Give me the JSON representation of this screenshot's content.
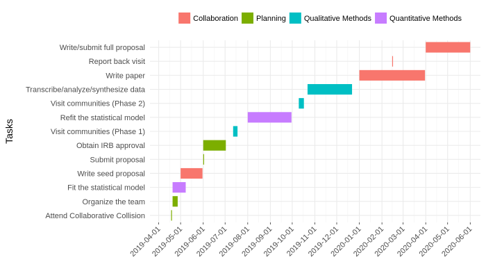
{
  "chart_data": {
    "type": "gantt",
    "ylabel": "Tasks",
    "xlabel": "",
    "xlim": [
      "2019-03-20",
      "2020-06-15"
    ],
    "x_ticks": [
      "2019-04-01",
      "2019-05-01",
      "2019-06-01",
      "2019-07-01",
      "2019-08-01",
      "2019-09-01",
      "2019-10-01",
      "2019-11-01",
      "2019-12-01",
      "2020-01-01",
      "2020-02-01",
      "2020-03-01",
      "2020-04-01",
      "2020-05-01",
      "2020-06-01"
    ],
    "legend_position": "top",
    "grid": true,
    "series": [
      {
        "name": "Collaboration",
        "color": "#F8766D"
      },
      {
        "name": "Planning",
        "color": "#7CAE00"
      },
      {
        "name": "Qualitative Methods",
        "color": "#00BFC4"
      },
      {
        "name": "Quantitative Methods",
        "color": "#C77CFF"
      }
    ],
    "tasks": [
      {
        "name": "Write/submit full proposal",
        "series": "Collaboration",
        "start": "2020-04-01",
        "end": "2020-06-01"
      },
      {
        "name": "Report back visit",
        "series": "Collaboration",
        "start": "2020-02-15",
        "end": "2020-02-16"
      },
      {
        "name": "Write paper",
        "series": "Collaboration",
        "start": "2020-01-01",
        "end": "2020-03-31"
      },
      {
        "name": "Transcribe/analyze/synthesize data",
        "series": "Qualitative Methods",
        "start": "2019-10-22",
        "end": "2019-12-22"
      },
      {
        "name": "Visit communities (Phase 2)",
        "series": "Qualitative Methods",
        "start": "2019-10-10",
        "end": "2019-10-17"
      },
      {
        "name": "Refit the statistical model",
        "series": "Quantitative Methods",
        "start": "2019-08-01",
        "end": "2019-09-30"
      },
      {
        "name": "Visit communities (Phase 1)",
        "series": "Qualitative Methods",
        "start": "2019-07-12",
        "end": "2019-07-18"
      },
      {
        "name": "Obtain IRB approval",
        "series": "Planning",
        "start": "2019-06-01",
        "end": "2019-07-02"
      },
      {
        "name": "Submit proposal",
        "series": "Planning",
        "start": "2019-06-01",
        "end": "2019-06-02"
      },
      {
        "name": "Write seed proposal",
        "series": "Collaboration",
        "start": "2019-05-01",
        "end": "2019-05-31"
      },
      {
        "name": "Fit the statistical model",
        "series": "Quantitative Methods",
        "start": "2019-04-20",
        "end": "2019-05-08"
      },
      {
        "name": "Organize the team",
        "series": "Planning",
        "start": "2019-04-20",
        "end": "2019-04-27"
      },
      {
        "name": "Attend Collaborative Collision",
        "series": "Planning",
        "start": "2019-04-18",
        "end": "2019-04-19"
      }
    ]
  }
}
